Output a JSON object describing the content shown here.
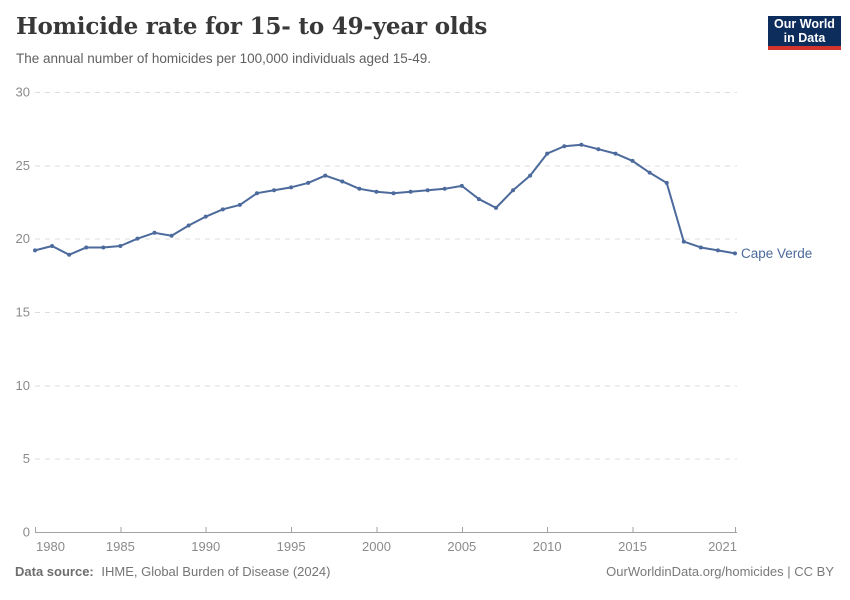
{
  "header": {
    "title": "Homicide rate for 15- to 49-year olds",
    "subtitle": "The annual number of homicides per 100,000 individuals aged 15-49."
  },
  "logo": {
    "line1": "Our World",
    "line2": "in Data",
    "bg_color": "#0d2e5c",
    "accent_color": "#d3342e"
  },
  "chart_data": {
    "type": "line",
    "title": "Homicide rate for 15- to 49-year olds",
    "subtitle": "The annual number of homicides per 100,000 individuals aged 15-49.",
    "xlabel": "",
    "ylabel": "",
    "xlim": [
      1980,
      2021
    ],
    "ylim": [
      0,
      30
    ],
    "x_ticks": [
      1980,
      1985,
      1990,
      1995,
      2000,
      2005,
      2010,
      2015,
      2021
    ],
    "y_ticks": [
      0,
      5,
      10,
      15,
      20,
      25,
      30
    ],
    "grid": "horizontal-dashed",
    "legend_position": "end-of-line-label",
    "colors": {
      "grid": "#dedede",
      "axis": "#a3a3a3",
      "tick_text": "#8b8b8b"
    },
    "series": [
      {
        "name": "Cape Verde",
        "color": "#4c6a9c",
        "x": [
          1980,
          1981,
          1982,
          1983,
          1984,
          1985,
          1986,
          1987,
          1988,
          1989,
          1990,
          1991,
          1992,
          1993,
          1994,
          1995,
          1996,
          1997,
          1998,
          1999,
          2000,
          2001,
          2002,
          2003,
          2004,
          2005,
          2006,
          2007,
          2008,
          2009,
          2010,
          2011,
          2012,
          2013,
          2014,
          2015,
          2016,
          2017,
          2018,
          2019,
          2020,
          2021
        ],
        "values": [
          19.2,
          19.5,
          18.9,
          19.4,
          19.4,
          19.5,
          20.0,
          20.4,
          20.2,
          20.9,
          21.5,
          22.0,
          22.3,
          23.1,
          23.3,
          23.5,
          23.8,
          24.3,
          23.9,
          23.4,
          23.2,
          23.1,
          23.2,
          23.3,
          23.4,
          23.6,
          22.7,
          22.1,
          23.3,
          24.3,
          25.8,
          26.3,
          26.4,
          26.1,
          25.8,
          25.3,
          24.5,
          23.8,
          19.8,
          19.4,
          19.2,
          19.0
        ]
      }
    ]
  },
  "footer": {
    "source_label": "Data source:",
    "source_text": "IHME, Global Burden of Disease (2024)",
    "credit": "OurWorldinData.org/homicides | CC BY"
  }
}
